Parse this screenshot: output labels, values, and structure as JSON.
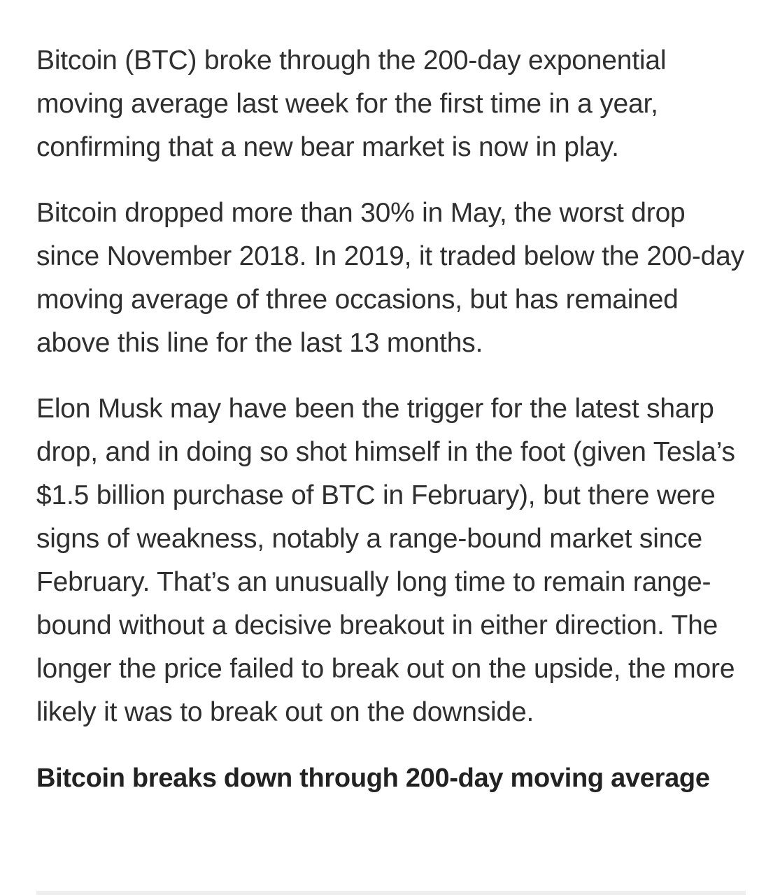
{
  "article": {
    "paragraphs": [
      "Bitcoin (BTC) broke through the 200-day exponential moving average last week for the first time in a year, confirming that a new bear market is now in play.",
      "Bitcoin dropped more than 30% in May, the worst drop since November 2018. In 2019, it traded below the 200-day moving average of three occasions, but has remained above this line for the last 13 months.",
      "Elon Musk may have been the trigger for the latest sharp drop, and in doing so shot himself in the foot (given Tesla’s $1.5 billion purchase of BTC in February), but there were signs of weakness, notably a range-bound market since February. That’s an unusually long time to remain range-bound without a decisive breakout in either direction. The longer the price failed to break out on the upside, the more likely it was to break out on the downside."
    ],
    "subheading": "Bitcoin breaks down through 200-day moving average"
  }
}
